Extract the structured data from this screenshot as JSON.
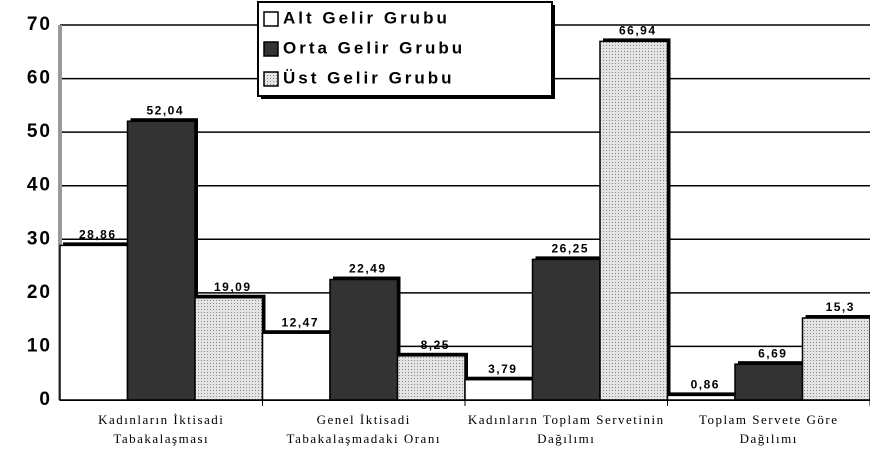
{
  "chart_data": {
    "type": "bar",
    "categories": [
      "Kadınların İktisadi Tabakalaşması",
      "Genel İktisadi Tabakalaşmadaki Oranı",
      "Kadınların Toplam Servetinin Dağılımı",
      "Toplam Servete Göre Dağılımı"
    ],
    "series": [
      {
        "name": "Alt Gelir Grubu",
        "color": "#ffffff",
        "values": [
          28.86,
          12.47,
          3.79,
          0.86
        ],
        "value_labels": [
          "28,86",
          "12,47",
          "3,79",
          "0,86"
        ]
      },
      {
        "name": "Orta Gelir Grubu",
        "color": "#333333",
        "values": [
          52.04,
          22.49,
          26.25,
          6.69
        ],
        "value_labels": [
          "52,04",
          "22,49",
          "26,25",
          "6,69"
        ]
      },
      {
        "name": "Üst Gelir Grubu",
        "color": "#d0d0d0",
        "values": [
          19.09,
          8.25,
          66.94,
          15.3
        ],
        "value_labels": [
          "19,09",
          "8,25",
          "66,94",
          "15,3"
        ]
      }
    ],
    "ylim": [
      0,
      70
    ],
    "yticks": [
      0,
      10,
      20,
      30,
      40,
      50,
      60,
      70
    ],
    "grid": true,
    "legend": "top-center"
  }
}
